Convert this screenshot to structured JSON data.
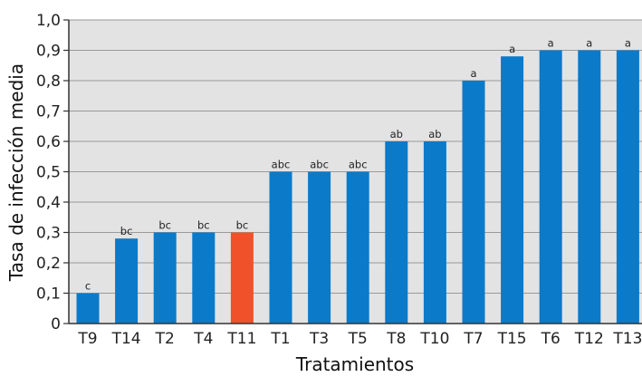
{
  "chart_data": {
    "type": "bar",
    "categories": [
      "T9",
      "T14",
      "T2",
      "T4",
      "T11",
      "T1",
      "T3",
      "T5",
      "T8",
      "T10",
      "T7",
      "T15",
      "T6",
      "T12",
      "T13"
    ],
    "values": [
      0.1,
      0.28,
      0.3,
      0.3,
      0.3,
      0.5,
      0.5,
      0.5,
      0.6,
      0.6,
      0.8,
      0.88,
      0.9,
      0.9,
      0.9
    ],
    "group_labels": [
      "c",
      "bc",
      "bc",
      "bc",
      "bc",
      "abc",
      "abc",
      "abc",
      "ab",
      "ab",
      "a",
      "a",
      "a",
      "a",
      "a"
    ],
    "highlight_category": "T11",
    "xlabel": "Tratamientos",
    "ylabel": "Tasa de infección media",
    "ylim": [
      0,
      1.0
    ],
    "yticks": [
      0,
      0.1,
      0.2,
      0.3,
      0.4,
      0.5,
      0.6,
      0.7,
      0.8,
      0.9,
      1.0
    ],
    "ytick_labels": [
      "0",
      "0,1",
      "0,2",
      "0,3",
      "0,4",
      "0,5",
      "0,6",
      "0,7",
      "0,8",
      "0,9",
      "1,0"
    ],
    "grid": true,
    "colors": {
      "bar": "#0a7ac9",
      "highlight": "#f0512a",
      "plot_background": "#e3e3e3",
      "gridline": "#9a9a9a",
      "axis": "#333333"
    }
  }
}
